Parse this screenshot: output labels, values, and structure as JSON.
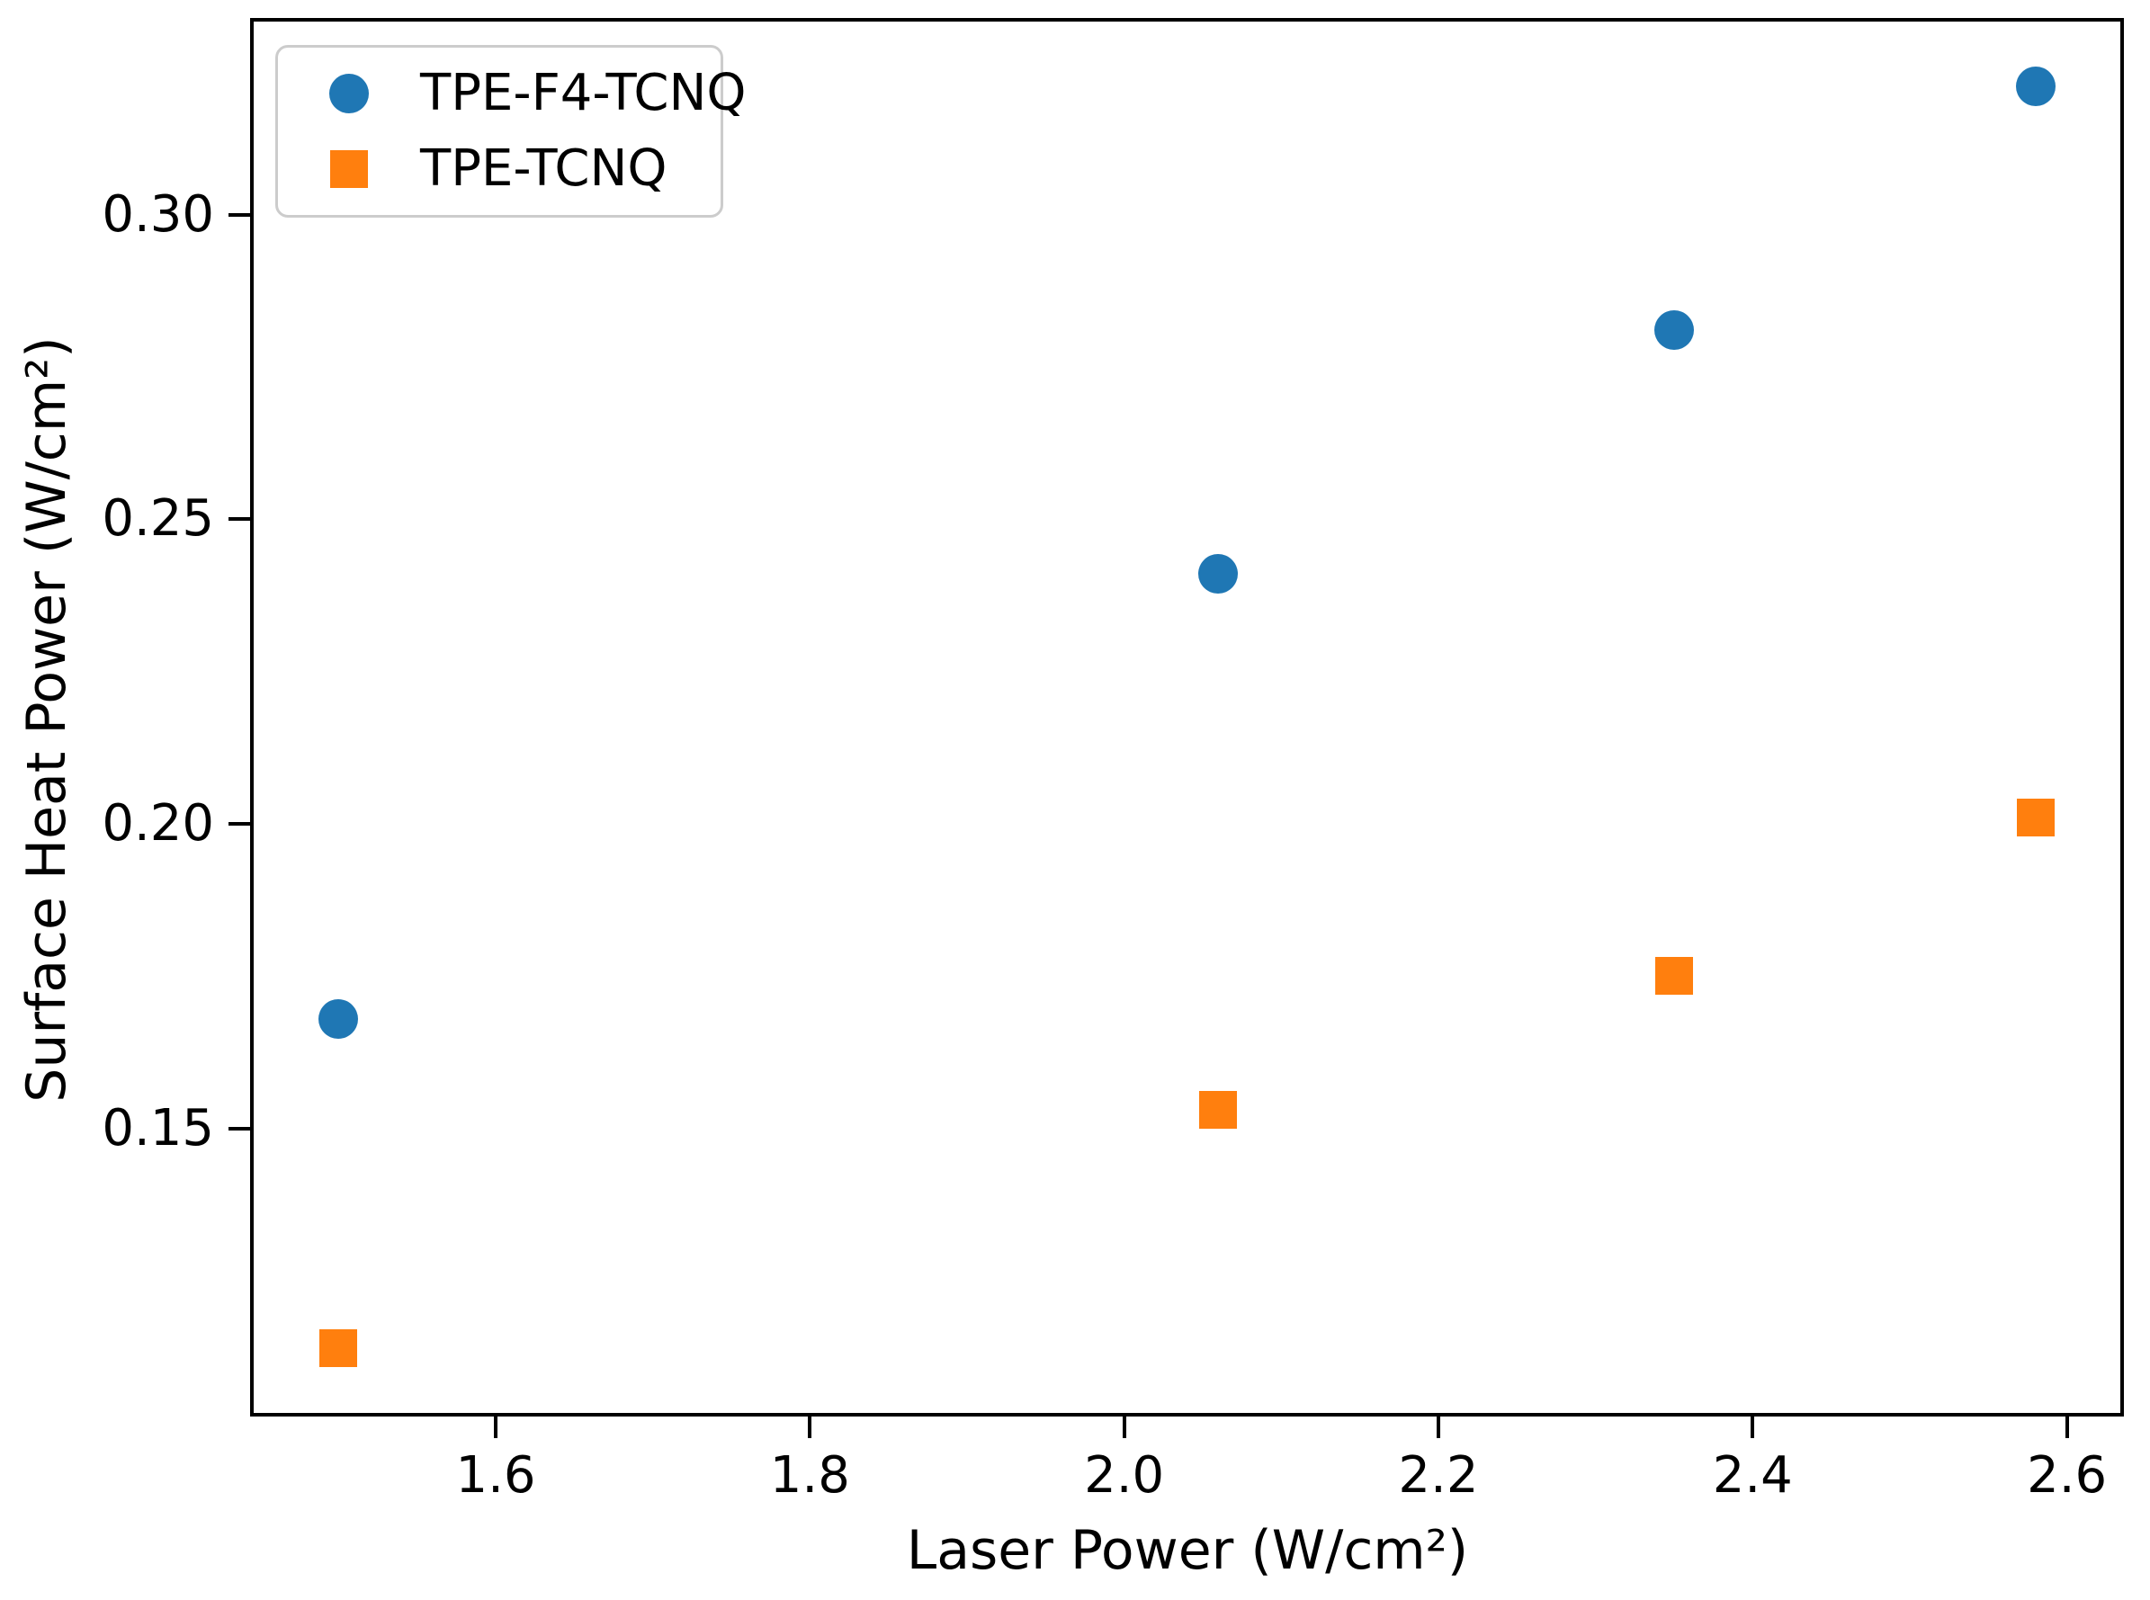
{
  "chart_data": {
    "type": "scatter",
    "title": "",
    "xlabel": "Laser Power (W/cm²)",
    "ylabel": "Surface Heat Power (W/cm²)",
    "xlim": [
      1.446,
      2.634
    ],
    "ylim": [
      0.1033,
      0.3317
    ],
    "grid": false,
    "legend_position": "upper-left",
    "x_ticks": [
      {
        "value": 1.6,
        "label": "1.6"
      },
      {
        "value": 1.8,
        "label": "1.8"
      },
      {
        "value": 2.0,
        "label": "2.0"
      },
      {
        "value": 2.2,
        "label": "2.2"
      },
      {
        "value": 2.4,
        "label": "2.4"
      },
      {
        "value": 2.6,
        "label": "2.6"
      }
    ],
    "y_ticks": [
      {
        "value": 0.15,
        "label": "0.15"
      },
      {
        "value": 0.2,
        "label": "0.20"
      },
      {
        "value": 0.25,
        "label": "0.25"
      },
      {
        "value": 0.3,
        "label": "0.30"
      }
    ],
    "series": [
      {
        "name": "TPE-F4-TCNQ",
        "marker": "circle",
        "color": "#1f77b4",
        "points": [
          {
            "x": 1.5,
            "y": 0.168
          },
          {
            "x": 2.06,
            "y": 0.241
          },
          {
            "x": 2.35,
            "y": 0.281
          },
          {
            "x": 2.58,
            "y": 0.321
          }
        ]
      },
      {
        "name": "TPE-TCNQ",
        "marker": "square",
        "color": "#ff7f0e",
        "points": [
          {
            "x": 1.5,
            "y": 0.114
          },
          {
            "x": 2.06,
            "y": 0.153
          },
          {
            "x": 2.35,
            "y": 0.175
          },
          {
            "x": 2.58,
            "y": 0.201
          }
        ]
      }
    ]
  }
}
